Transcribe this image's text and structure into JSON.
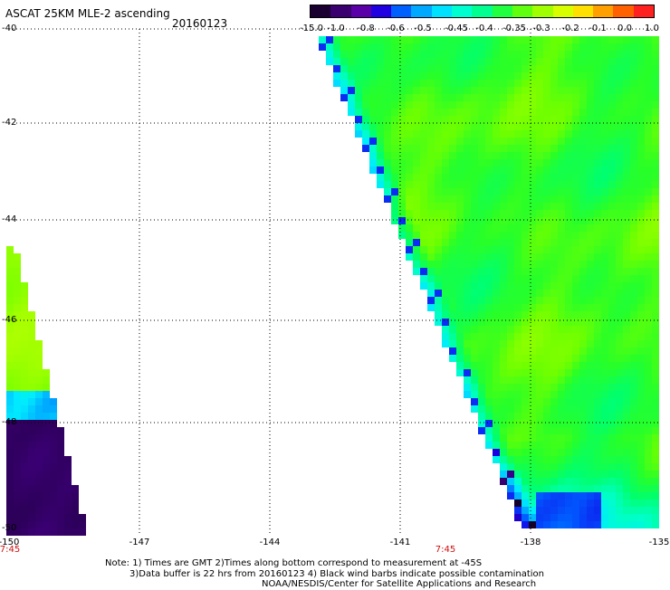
{
  "header": {
    "title": "ASCAT 25KM MLE-2 ascending",
    "date": "20160123"
  },
  "colorbar": {
    "labels": [
      "-15.0",
      "-1.0",
      "-0.8",
      "-0.6",
      "-0.5",
      "-0.45",
      "-0.4",
      "-0.35",
      "-0.3",
      "-0.2",
      "-0.1",
      "0.0",
      "1.0"
    ],
    "colors": [
      "#1a0030",
      "#3a0070",
      "#5a00a8",
      "#2000e0",
      "#0060ff",
      "#00a8ff",
      "#00e0ff",
      "#00ffd0",
      "#00ff90",
      "#20ff40",
      "#60ff10",
      "#a0ff00",
      "#d8ff00",
      "#ffe000",
      "#ffa000",
      "#ff6000",
      "#ff2020"
    ]
  },
  "axes": {
    "lat_labels": [
      "-40",
      "-42",
      "-44",
      "-46",
      "-48",
      "-50"
    ],
    "lon_labels": [
      "-150",
      "-147",
      "-144",
      "-141",
      "-138",
      "-135"
    ],
    "time_labels": [
      "7:45",
      "7:45"
    ]
  },
  "notes": {
    "line1": "Note: 1) Times are GMT 2)Times along bottom correspond to measurement at -45S",
    "line2": "3)Data buffer is 22 hrs from 20160123 4) Black wind barbs indicate possible contamination",
    "line3": "NOAA/NESDIS/Center for Satellite Applications and Research"
  }
}
